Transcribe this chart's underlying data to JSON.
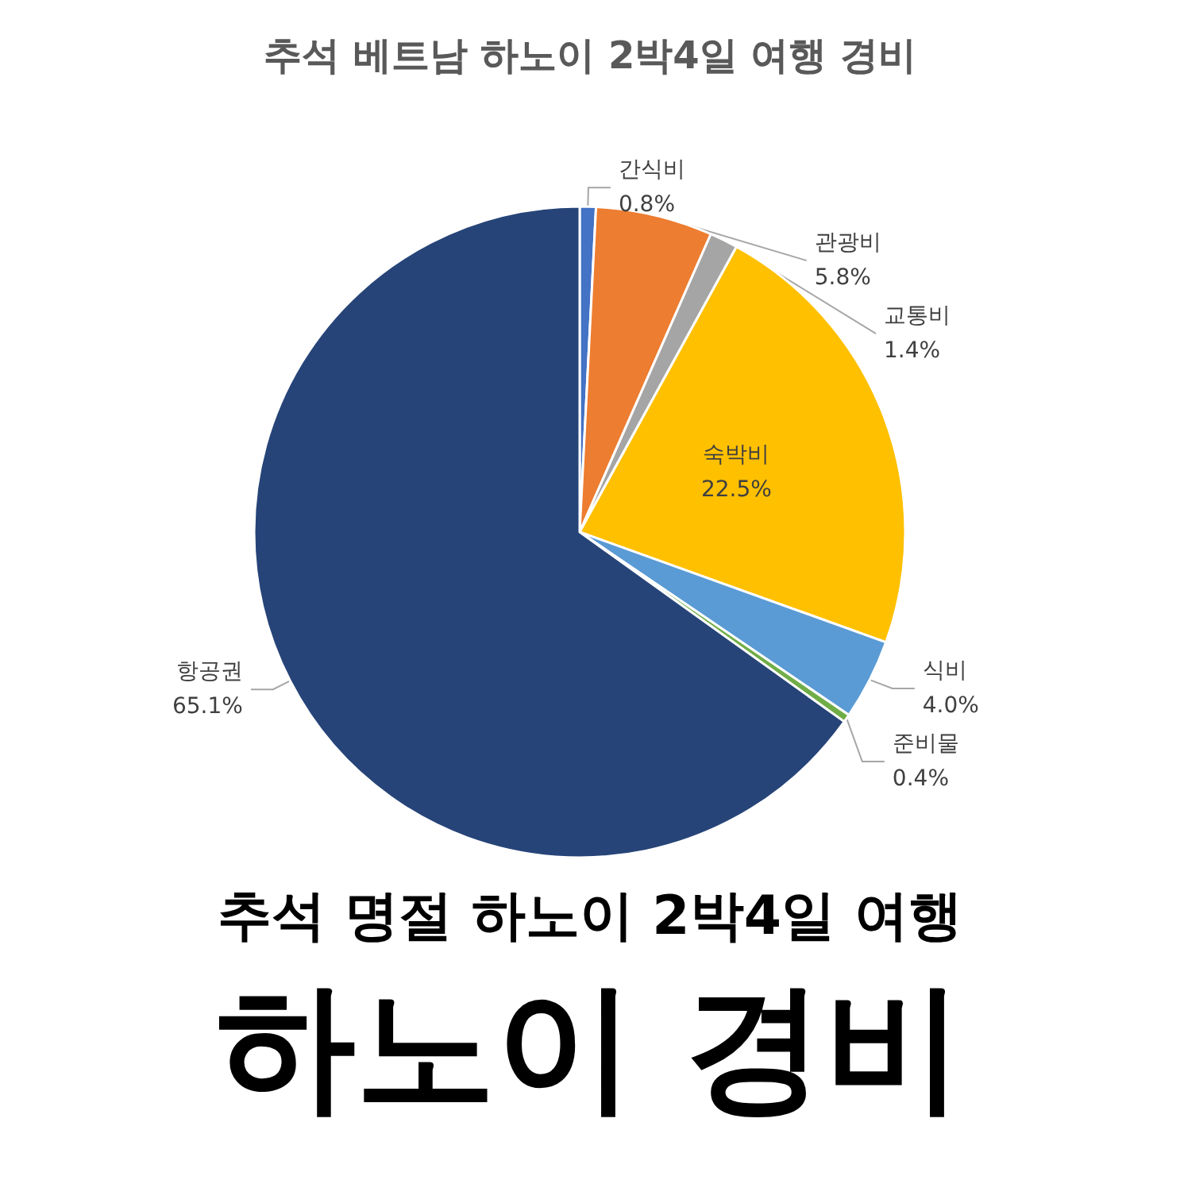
{
  "chart_data": {
    "type": "pie",
    "title": "추석 베트남 하노이 2박4일 여행 경비",
    "categories": [
      "간식비",
      "관광비",
      "교통비",
      "숙박비",
      "식비",
      "준비물",
      "항공권"
    ],
    "values": [
      0.8,
      5.8,
      1.4,
      22.5,
      4.0,
      0.4,
      65.1
    ],
    "value_labels": [
      "0.8%",
      "5.8%",
      "1.4%",
      "22.5%",
      "4.0%",
      "0.4%",
      "65.1%"
    ],
    "colors": [
      "#4472c4",
      "#ed7d31",
      "#a5a5a5",
      "#ffc000",
      "#5b9bd5",
      "#70ad47",
      "#264478"
    ],
    "annotations": [
      "추석 명절 하노이 2박4일 여행",
      "하노이 경비"
    ]
  }
}
